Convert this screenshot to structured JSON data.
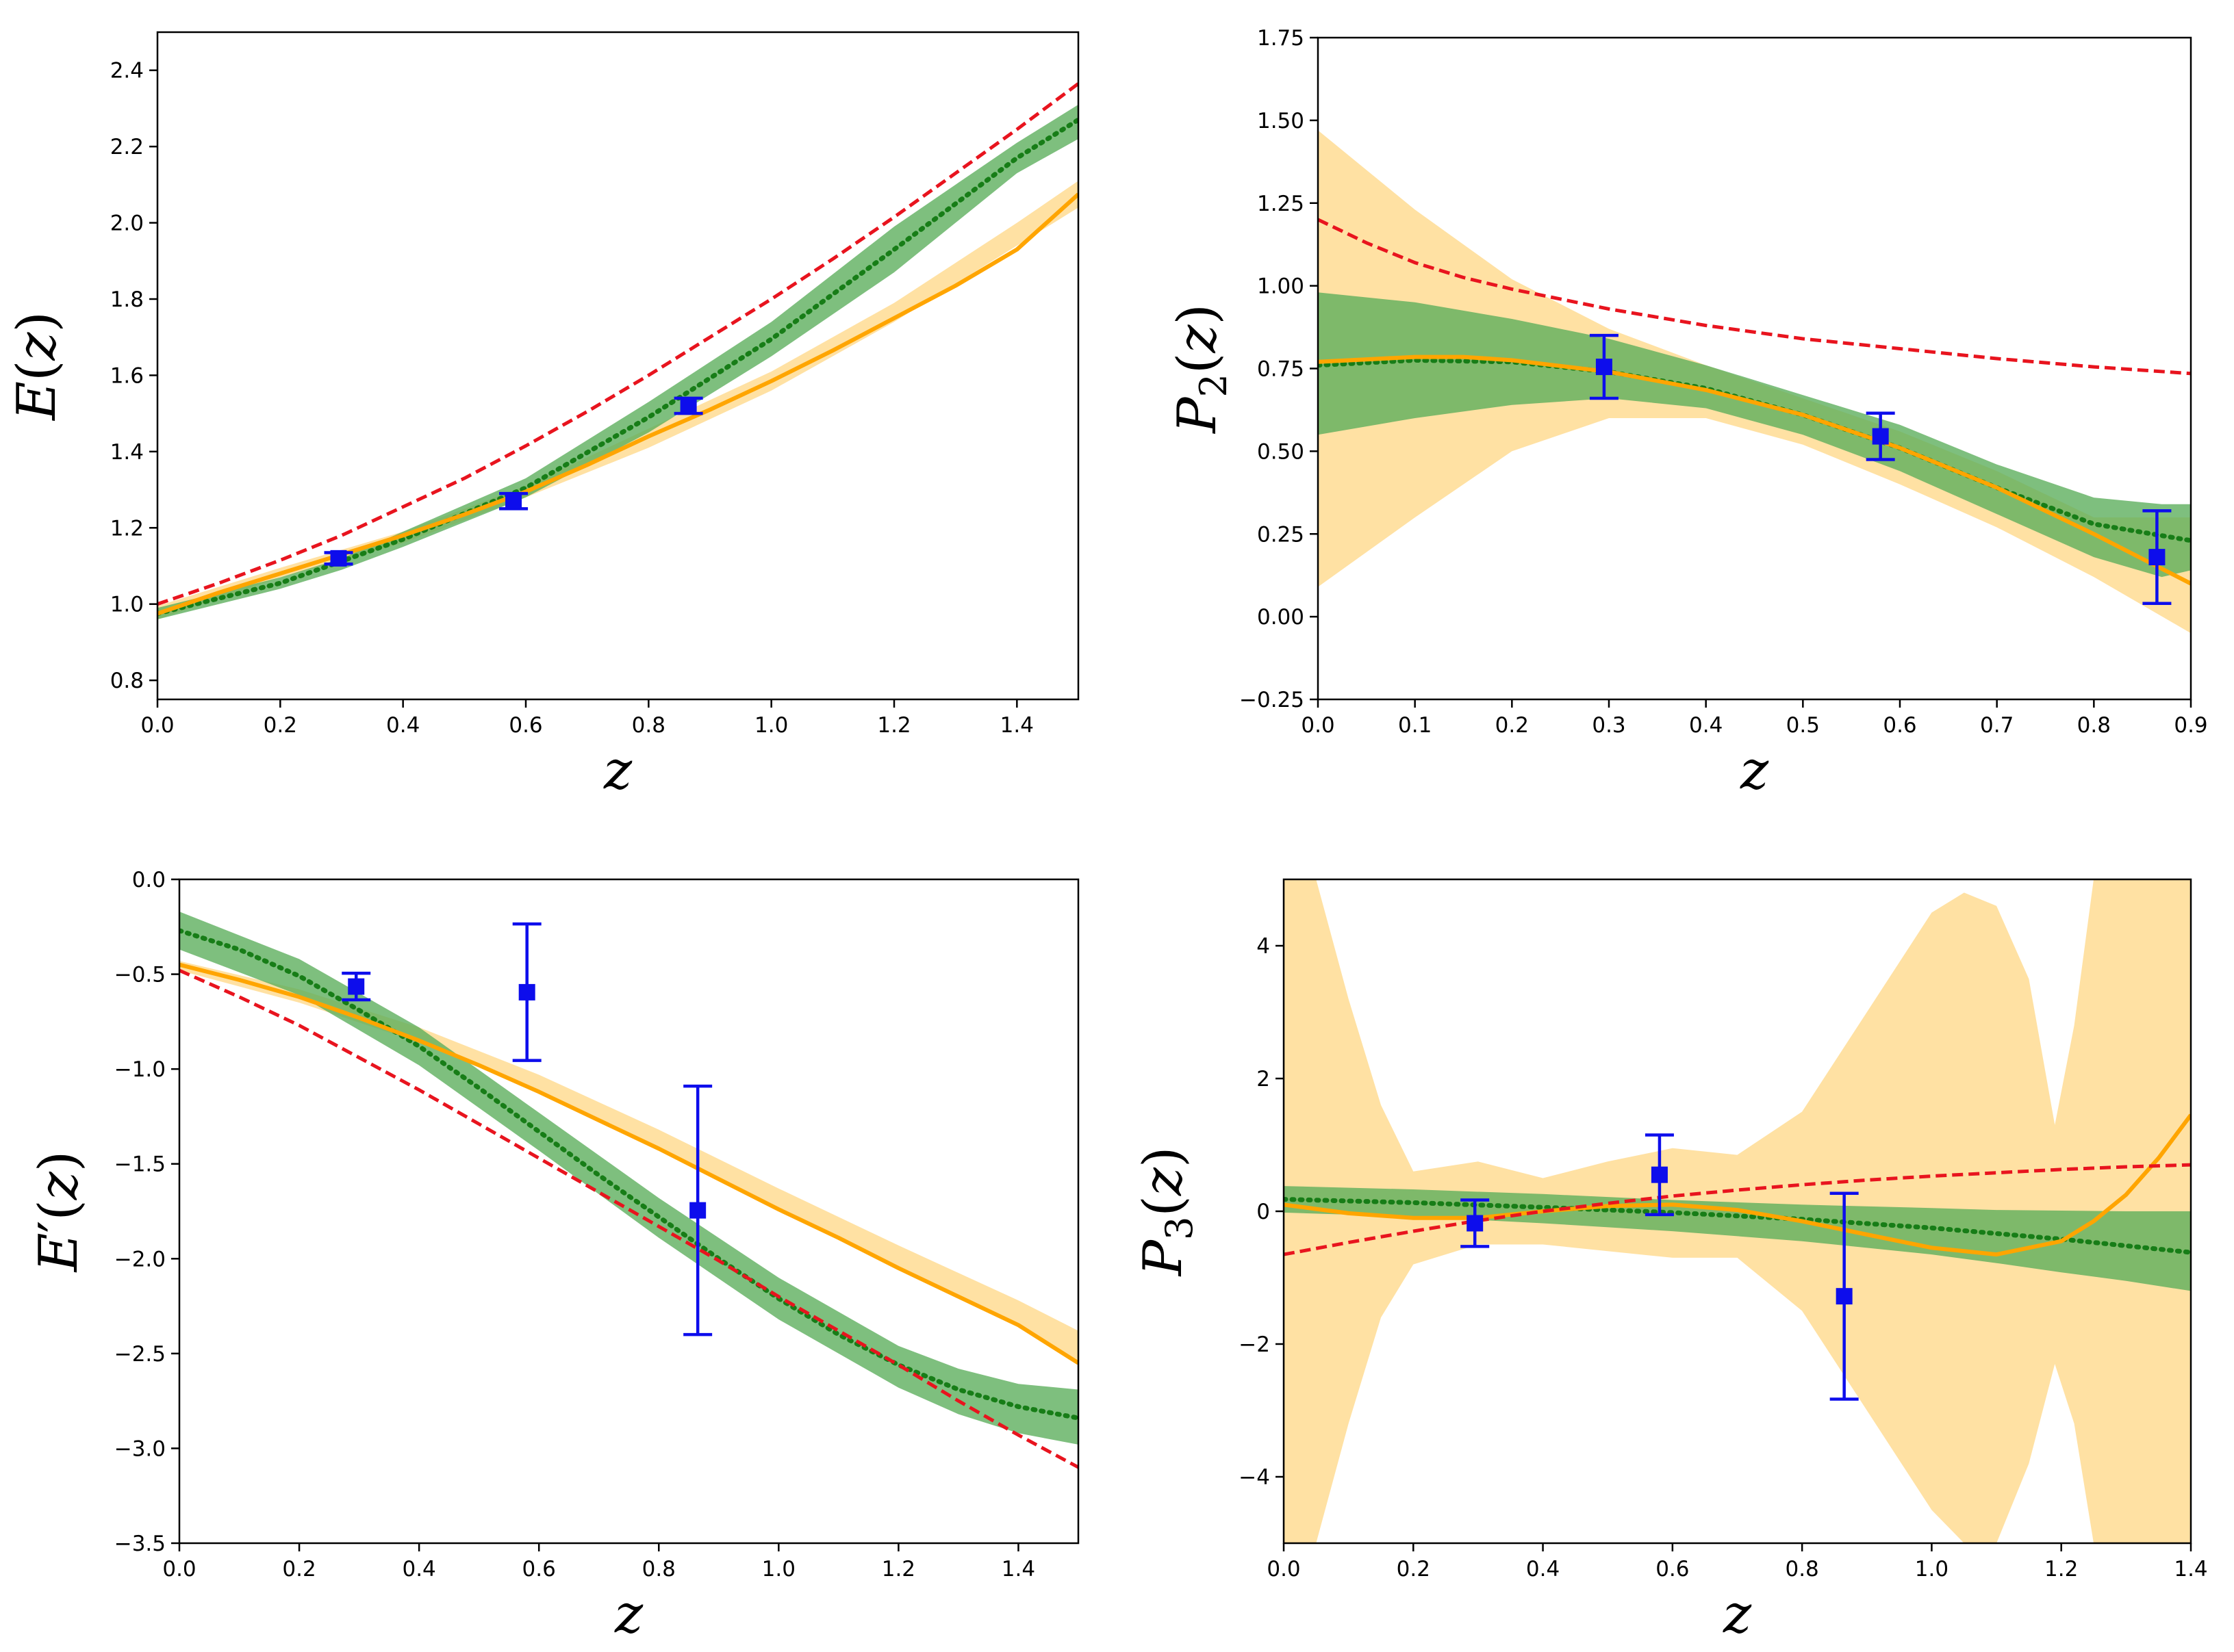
{
  "colors": {
    "band_green": "#5aad5a",
    "band_orange": "#ffd98c",
    "line_green": "#177d17",
    "line_orange": "#ffa500",
    "line_red": "#e8141e",
    "points": "#0d0dec",
    "axes": "#000000"
  },
  "chart_data": [
    {
      "id": "E",
      "type": "line",
      "ylabel": {
        "base": "E",
        "prime": "",
        "sub": "",
        "arg": "(z)"
      },
      "xlabel": "z",
      "xlim": [
        0.0,
        1.5
      ],
      "ylim": [
        0.75,
        2.5
      ],
      "xticks": [
        "0.0",
        "0.2",
        "0.4",
        "0.6",
        "0.8",
        "1.0",
        "1.2",
        "1.4"
      ],
      "yticks": [
        "0.8",
        "1.0",
        "1.2",
        "1.4",
        "1.6",
        "1.8",
        "2.0",
        "2.2",
        "2.4"
      ],
      "bands": [
        {
          "color_key": "band_orange",
          "x": [
            0,
            0.2,
            0.4,
            0.6,
            0.8,
            1.0,
            1.2,
            1.4,
            1.5
          ],
          "lower": [
            0.96,
            1.07,
            1.16,
            1.28,
            1.41,
            1.56,
            1.74,
            1.94,
            2.04
          ],
          "upper": [
            0.995,
            1.095,
            1.19,
            1.31,
            1.46,
            1.61,
            1.79,
            2.0,
            2.11
          ]
        },
        {
          "color_key": "band_green",
          "x": [
            0,
            0.2,
            0.3,
            0.4,
            0.6,
            0.8,
            1.0,
            1.2,
            1.4,
            1.5
          ],
          "lower": [
            0.96,
            1.04,
            1.09,
            1.15,
            1.28,
            1.45,
            1.65,
            1.87,
            2.13,
            2.22
          ],
          "upper": [
            0.99,
            1.07,
            1.12,
            1.19,
            1.33,
            1.53,
            1.74,
            1.99,
            2.21,
            2.31
          ]
        }
      ],
      "series": [
        {
          "style": "dotted",
          "color_key": "line_green",
          "x": [
            0,
            0.2,
            0.4,
            0.6,
            0.8,
            1.0,
            1.2,
            1.4,
            1.5
          ],
          "y": [
            0.975,
            1.055,
            1.17,
            1.305,
            1.49,
            1.695,
            1.93,
            2.17,
            2.27
          ]
        },
        {
          "style": "solid",
          "color_key": "line_orange",
          "x": [
            0,
            0.1,
            0.2,
            0.3,
            0.4,
            0.5,
            0.6,
            0.7,
            0.8,
            0.9,
            1.0,
            1.1,
            1.2,
            1.3,
            1.4,
            1.5
          ],
          "y": [
            0.975,
            1.03,
            1.08,
            1.13,
            1.18,
            1.235,
            1.295,
            1.365,
            1.44,
            1.51,
            1.585,
            1.665,
            1.75,
            1.835,
            1.93,
            2.075
          ]
        },
        {
          "style": "dashed",
          "color_key": "line_red",
          "x": [
            0,
            0.1,
            0.2,
            0.3,
            0.4,
            0.5,
            0.6,
            0.7,
            0.8,
            0.9,
            1.0,
            1.1,
            1.2,
            1.3,
            1.4,
            1.5
          ],
          "y": [
            1.0,
            1.055,
            1.115,
            1.18,
            1.255,
            1.33,
            1.415,
            1.505,
            1.6,
            1.7,
            1.8,
            1.905,
            2.015,
            2.13,
            2.245,
            2.365
          ]
        }
      ],
      "points": {
        "x": [
          0.295,
          0.58,
          0.865
        ],
        "y": [
          1.12,
          1.27,
          1.52
        ],
        "err": [
          0.015,
          0.02,
          0.02
        ]
      }
    },
    {
      "id": "P2",
      "type": "line",
      "ylabel": {
        "base": "P",
        "prime": "",
        "sub": "2",
        "arg": "(z)"
      },
      "xlabel": "z",
      "xlim": [
        0.0,
        0.9
      ],
      "ylim": [
        -0.25,
        1.75
      ],
      "xticks": [
        "0.0",
        "0.1",
        "0.2",
        "0.3",
        "0.4",
        "0.5",
        "0.6",
        "0.7",
        "0.8",
        "0.9"
      ],
      "yticks": [
        "−0.25",
        "0.00",
        "0.25",
        "0.50",
        "0.75",
        "1.00",
        "1.25",
        "1.50",
        "1.75"
      ],
      "bands": [
        {
          "color_key": "band_orange",
          "x": [
            0,
            0.1,
            0.2,
            0.3,
            0.4,
            0.5,
            0.6,
            0.7,
            0.8,
            0.9
          ],
          "lower": [
            0.09,
            0.3,
            0.5,
            0.6,
            0.6,
            0.52,
            0.4,
            0.27,
            0.12,
            -0.05
          ],
          "upper": [
            1.47,
            1.23,
            1.02,
            0.87,
            0.76,
            0.66,
            0.56,
            0.44,
            0.3,
            0.3
          ]
        },
        {
          "color_key": "band_green",
          "x": [
            0,
            0.1,
            0.2,
            0.3,
            0.4,
            0.5,
            0.6,
            0.7,
            0.8,
            0.87,
            0.9
          ],
          "lower": [
            0.55,
            0.6,
            0.64,
            0.66,
            0.63,
            0.55,
            0.44,
            0.31,
            0.18,
            0.12,
            0.14
          ],
          "upper": [
            0.98,
            0.95,
            0.9,
            0.84,
            0.76,
            0.67,
            0.58,
            0.46,
            0.36,
            0.34,
            0.34
          ]
        }
      ],
      "series": [
        {
          "style": "dotted",
          "color_key": "line_green",
          "x": [
            0,
            0.1,
            0.2,
            0.3,
            0.4,
            0.5,
            0.6,
            0.7,
            0.8,
            0.9
          ],
          "y": [
            0.76,
            0.775,
            0.77,
            0.74,
            0.69,
            0.61,
            0.51,
            0.39,
            0.28,
            0.23
          ]
        },
        {
          "style": "solid",
          "color_key": "line_orange",
          "x": [
            0,
            0.1,
            0.15,
            0.2,
            0.3,
            0.4,
            0.5,
            0.6,
            0.7,
            0.8,
            0.9
          ],
          "y": [
            0.77,
            0.785,
            0.785,
            0.775,
            0.74,
            0.685,
            0.61,
            0.51,
            0.39,
            0.25,
            0.1
          ]
        },
        {
          "style": "dashed",
          "color_key": "line_red",
          "x": [
            0,
            0.05,
            0.1,
            0.15,
            0.2,
            0.3,
            0.4,
            0.5,
            0.6,
            0.7,
            0.8,
            0.9
          ],
          "y": [
            1.2,
            1.13,
            1.07,
            1.025,
            0.99,
            0.93,
            0.88,
            0.84,
            0.81,
            0.78,
            0.755,
            0.735
          ]
        }
      ],
      "points": {
        "x": [
          0.295,
          0.58,
          0.865
        ],
        "y": [
          0.755,
          0.545,
          0.18
        ],
        "err": [
          0.095,
          0.07,
          0.14
        ]
      }
    },
    {
      "id": "dE",
      "type": "line",
      "ylabel": {
        "base": "E",
        "prime": "′",
        "sub": "",
        "arg": "(z)"
      },
      "xlabel": "z",
      "xlim": [
        0.0,
        1.5
      ],
      "ylim": [
        -3.5,
        0.0
      ],
      "xticks": [
        "0.0",
        "0.2",
        "0.4",
        "0.6",
        "0.8",
        "1.0",
        "1.2",
        "1.4"
      ],
      "yticks": [
        "−3.5",
        "−3.0",
        "−2.5",
        "−2.0",
        "−1.5",
        "−1.0",
        "−0.5",
        "0.0"
      ],
      "bands": [
        {
          "color_key": "band_orange",
          "x": [
            0,
            0.2,
            0.4,
            0.6,
            0.8,
            1.0,
            1.2,
            1.4,
            1.5
          ],
          "lower": [
            -0.48,
            -0.65,
            -0.86,
            -1.12,
            -1.42,
            -1.74,
            -2.06,
            -2.36,
            -2.55
          ],
          "upper": [
            -0.43,
            -0.58,
            -0.78,
            -1.03,
            -1.32,
            -1.63,
            -1.93,
            -2.22,
            -2.38
          ]
        },
        {
          "color_key": "band_green",
          "x": [
            0,
            0.2,
            0.4,
            0.6,
            0.8,
            1.0,
            1.2,
            1.3,
            1.4,
            1.5
          ],
          "lower": [
            -0.37,
            -0.61,
            -0.98,
            -1.43,
            -1.89,
            -2.32,
            -2.68,
            -2.82,
            -2.92,
            -2.98
          ],
          "upper": [
            -0.17,
            -0.42,
            -0.78,
            -1.23,
            -1.68,
            -2.1,
            -2.46,
            -2.58,
            -2.66,
            -2.69
          ]
        }
      ],
      "series": [
        {
          "style": "dotted",
          "color_key": "line_green",
          "x": [
            0,
            0.1,
            0.2,
            0.3,
            0.4,
            0.5,
            0.6,
            0.7,
            0.8,
            0.9,
            1.0,
            1.1,
            1.2,
            1.3,
            1.4,
            1.5
          ],
          "y": [
            -0.27,
            -0.37,
            -0.51,
            -0.69,
            -0.88,
            -1.1,
            -1.33,
            -1.56,
            -1.78,
            -2.0,
            -2.21,
            -2.4,
            -2.56,
            -2.69,
            -2.78,
            -2.84
          ]
        },
        {
          "style": "solid",
          "color_key": "line_orange",
          "x": [
            0,
            0.1,
            0.2,
            0.3,
            0.4,
            0.5,
            0.6,
            0.7,
            0.8,
            0.9,
            1.0,
            1.1,
            1.2,
            1.3,
            1.4,
            1.5
          ],
          "y": [
            -0.45,
            -0.53,
            -0.62,
            -0.73,
            -0.85,
            -0.98,
            -1.12,
            -1.27,
            -1.42,
            -1.58,
            -1.74,
            -1.89,
            -2.05,
            -2.2,
            -2.35,
            -2.55
          ]
        },
        {
          "style": "dashed",
          "color_key": "line_red",
          "x": [
            0,
            0.1,
            0.2,
            0.3,
            0.4,
            0.5,
            0.6,
            0.7,
            0.8,
            0.9,
            1.0,
            1.1,
            1.2,
            1.3,
            1.4,
            1.5
          ],
          "y": [
            -0.48,
            -0.62,
            -0.77,
            -0.94,
            -1.11,
            -1.29,
            -1.47,
            -1.65,
            -1.83,
            -2.01,
            -2.2,
            -2.38,
            -2.56,
            -2.75,
            -2.93,
            -3.1
          ]
        }
      ],
      "points": {
        "x": [
          0.295,
          0.58,
          0.865
        ],
        "y": [
          -0.565,
          -0.595,
          -1.745
        ],
        "err": [
          0.07,
          0.36,
          0.655
        ]
      }
    },
    {
      "id": "P3",
      "type": "line",
      "ylabel": {
        "base": "P",
        "prime": "",
        "sub": "3",
        "arg": "(z)"
      },
      "xlabel": "z",
      "xlim": [
        0.0,
        1.4
      ],
      "ylim": [
        -5.0,
        5.0
      ],
      "xticks": [
        "0.0",
        "0.2",
        "0.4",
        "0.6",
        "0.8",
        "1.0",
        "1.2",
        "1.4"
      ],
      "yticks": [
        "−4",
        "−2",
        "0",
        "2",
        "4"
      ],
      "bands": [
        {
          "color_key": "band_orange",
          "x": [
            0,
            0.05,
            0.1,
            0.15,
            0.2,
            0.3,
            0.4,
            0.5,
            0.6,
            0.7,
            0.8,
            0.9,
            1.0,
            1.05,
            1.1,
            1.15,
            1.19,
            1.22,
            1.25,
            1.3,
            1.4
          ],
          "lower": [
            -5.0,
            -5.0,
            -3.2,
            -1.6,
            -0.8,
            -0.5,
            -0.5,
            -0.6,
            -0.7,
            -0.7,
            -1.5,
            -3.0,
            -4.5,
            -5.0,
            -5.0,
            -3.8,
            -2.3,
            -3.2,
            -5.0,
            -5.0,
            -5.0
          ],
          "upper": [
            5.0,
            5.0,
            3.2,
            1.6,
            0.6,
            0.75,
            0.5,
            0.75,
            0.95,
            0.85,
            1.5,
            3.0,
            4.5,
            4.8,
            4.6,
            3.5,
            1.3,
            2.8,
            5.0,
            5.0,
            5.0
          ]
        },
        {
          "color_key": "band_green",
          "x": [
            0,
            0.2,
            0.4,
            0.6,
            0.8,
            1.0,
            1.1,
            1.2,
            1.3,
            1.4
          ],
          "lower": [
            -0.02,
            -0.08,
            -0.18,
            -0.3,
            -0.45,
            -0.65,
            -0.78,
            -0.92,
            -1.05,
            -1.2
          ],
          "upper": [
            0.38,
            0.33,
            0.26,
            0.17,
            0.1,
            0.05,
            0.02,
            0.01,
            0.0,
            0.0
          ]
        }
      ],
      "series": [
        {
          "style": "dotted",
          "color_key": "line_green",
          "x": [
            0,
            0.2,
            0.4,
            0.6,
            0.8,
            1.0,
            1.2,
            1.4
          ],
          "y": [
            0.18,
            0.13,
            0.06,
            -0.02,
            -0.12,
            -0.25,
            -0.42,
            -0.62
          ]
        },
        {
          "style": "solid",
          "color_key": "line_orange",
          "x": [
            0,
            0.1,
            0.2,
            0.3,
            0.4,
            0.5,
            0.6,
            0.7,
            0.8,
            0.9,
            1.0,
            1.1,
            1.2,
            1.25,
            1.3,
            1.35,
            1.4
          ],
          "y": [
            0.1,
            -0.03,
            -0.1,
            -0.1,
            0.0,
            0.08,
            0.1,
            0.02,
            -0.15,
            -0.35,
            -0.55,
            -0.65,
            -0.45,
            -0.15,
            0.25,
            0.8,
            1.45
          ]
        },
        {
          "style": "dashed",
          "color_key": "line_red",
          "x": [
            0,
            0.1,
            0.2,
            0.3,
            0.4,
            0.5,
            0.6,
            0.7,
            0.8,
            0.9,
            1.0,
            1.1,
            1.2,
            1.3,
            1.4
          ],
          "y": [
            -0.65,
            -0.47,
            -0.3,
            -0.14,
            0.0,
            0.12,
            0.23,
            0.32,
            0.4,
            0.47,
            0.53,
            0.58,
            0.63,
            0.67,
            0.7
          ]
        }
      ],
      "points": {
        "x": [
          0.295,
          0.58,
          0.865
        ],
        "y": [
          -0.18,
          0.55,
          -1.28
        ],
        "err": [
          0.35,
          0.6,
          1.55
        ]
      }
    }
  ]
}
